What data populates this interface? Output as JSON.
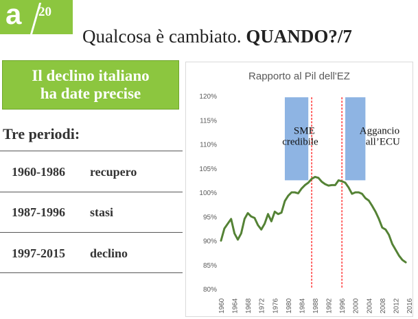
{
  "logo": {
    "letter": "a",
    "number": "20",
    "color": "#8cc63f"
  },
  "slide": {
    "title_plain": "Qualcosa è cambiato.",
    "title_bold": "QUANDO?/7"
  },
  "box": {
    "line1": "Il declino italiano",
    "line2": "ha date precise"
  },
  "periods": {
    "heading": "Tre periodi:",
    "items": [
      {
        "years": "1960-1986",
        "label": "recupero"
      },
      {
        "years": "1987-1996",
        "label": "stasi"
      },
      {
        "years": "1997-2015",
        "label": "declino"
      }
    ]
  },
  "chart_data": {
    "type": "line",
    "title": "Rapporto al Pil dell'EZ",
    "xlabel": "",
    "ylabel": "",
    "ylim": [
      0.8,
      1.2
    ],
    "yticks": [
      "120%",
      "115%",
      "110%",
      "105%",
      "100%",
      "95%",
      "90%",
      "85%",
      "80%"
    ],
    "xticks": [
      "1960",
      "1964",
      "1968",
      "1972",
      "1976",
      "1980",
      "1984",
      "1988",
      "1992",
      "1996",
      "2000",
      "2004",
      "2008",
      "2012",
      "2016"
    ],
    "grid": false,
    "legend": "none",
    "line_color": "#548235",
    "series": [
      {
        "x": [
          1960,
          1961,
          1962,
          1963,
          1964,
          1965,
          1966,
          1967,
          1968,
          1969,
          1970,
          1971,
          1972,
          1973,
          1974,
          1975,
          1976,
          1977,
          1978,
          1979,
          1980,
          1981,
          1982,
          1983,
          1984,
          1985,
          1986,
          1987,
          1988,
          1989,
          1990,
          1991,
          1992,
          1993,
          1994,
          1995,
          1996,
          1997,
          1998,
          1999,
          2000,
          2001,
          2002,
          2003,
          2004,
          2005,
          2006,
          2007,
          2008,
          2009,
          2010,
          2011,
          2012,
          2013,
          2014,
          2015
        ],
        "values": [
          0.9,
          0.925,
          0.935,
          0.945,
          0.915,
          0.902,
          0.915,
          0.945,
          0.957,
          0.95,
          0.947,
          0.932,
          0.923,
          0.935,
          0.955,
          0.94,
          0.96,
          0.955,
          0.958,
          0.982,
          0.993,
          1.0,
          1.0,
          0.998,
          1.008,
          1.015,
          1.02,
          1.028,
          1.032,
          1.03,
          1.022,
          1.017,
          1.014,
          1.015,
          1.015,
          1.025,
          1.023,
          1.02,
          1.01,
          0.997,
          1.0,
          1.0,
          0.997,
          0.988,
          0.983,
          0.972,
          0.96,
          0.945,
          0.927,
          0.923,
          0.912,
          0.893,
          0.881,
          0.869,
          0.86,
          0.855
        ]
      }
    ],
    "shaded_periods": [
      {
        "from": 1979,
        "to": 1986,
        "label_lines": [
          "SME",
          "credibile"
        ],
        "color": "#8eb4e3"
      },
      {
        "from": 1997,
        "to": 2003,
        "label_lines": [
          "Aggancio",
          "all’ECU"
        ],
        "color": "#8eb4e3"
      }
    ],
    "vlines": [
      1987,
      1996
    ],
    "vline_color": "#ff0000"
  }
}
